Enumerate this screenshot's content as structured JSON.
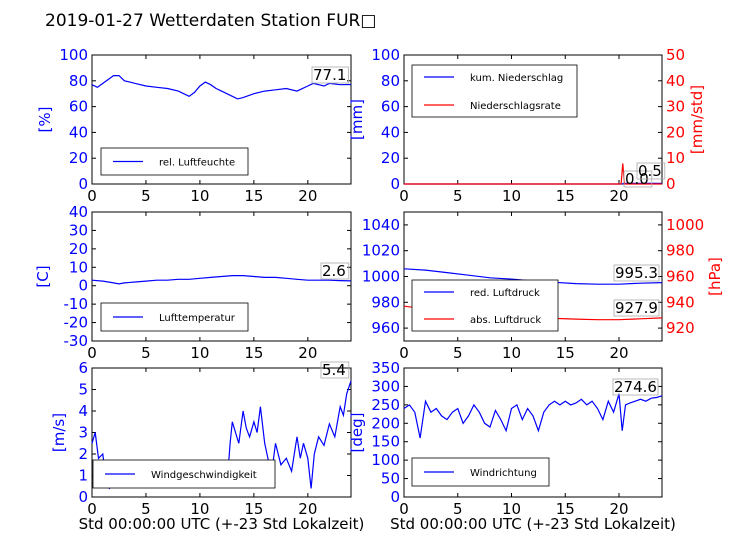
{
  "title": "2019-01-27 Wetterdaten Station FUR□",
  "colors": {
    "primary": "#0000ff",
    "secondary": "#ff0000",
    "axis": "#000000"
  },
  "chart_data": [
    {
      "type": "line",
      "ylabel": "[%]",
      "xlim": [
        0,
        24
      ],
      "ylim": [
        0,
        100
      ],
      "xticks": [
        0,
        5,
        10,
        15,
        20
      ],
      "yticks": [
        0,
        20,
        40,
        60,
        80,
        100
      ],
      "legend": {
        "placement": "lower-left",
        "entries": [
          "rel. Luftfeuchte"
        ]
      },
      "annotations": [
        {
          "text": "77.1",
          "series": 0
        }
      ],
      "series": [
        {
          "name": "rel. Luftfeuchte",
          "axis": "left",
          "color": "#0000ff",
          "x": [
            0,
            0.5,
            1,
            1.5,
            2,
            2.5,
            3,
            3.5,
            4,
            5,
            6,
            7,
            8,
            8.5,
            9,
            9.5,
            10,
            10.5,
            11,
            11.5,
            12,
            12.5,
            13,
            13.5,
            14,
            15,
            16,
            17,
            18,
            19,
            20,
            20.5,
            21,
            21.5,
            22,
            23,
            24
          ],
          "y": [
            77,
            75,
            78,
            81,
            84,
            84,
            80,
            79,
            78,
            76,
            75,
            74,
            72,
            70,
            68,
            71,
            76,
            79,
            77,
            74,
            72,
            70,
            68,
            66,
            67,
            70,
            72,
            73,
            74,
            72,
            76,
            78,
            77,
            76,
            78,
            77,
            77.1
          ]
        }
      ]
    },
    {
      "type": "line",
      "ylabel": "[mm]",
      "ylabel_right": "[mm/std]",
      "xlim": [
        0,
        24
      ],
      "ylim": [
        0,
        100
      ],
      "ylim_right": [
        0,
        50
      ],
      "xticks": [
        0,
        5,
        10,
        15,
        20
      ],
      "yticks": [
        0,
        20,
        40,
        60,
        80,
        100
      ],
      "yticks_right": [
        0,
        10,
        20,
        30,
        40,
        50
      ],
      "legend": {
        "placement": "upper-left",
        "entries": [
          "kum. Niederschlag",
          "Niederschlagsrate"
        ]
      },
      "annotations": [
        {
          "text": "0.0",
          "series": 1
        },
        {
          "text": "0.5",
          "series": 0
        }
      ],
      "series": [
        {
          "name": "kum. Niederschlag",
          "axis": "left",
          "color": "#0000ff",
          "x": [
            0,
            20.3,
            20.4,
            24
          ],
          "y": [
            0,
            0,
            0.5,
            0.5
          ]
        },
        {
          "name": "Niederschlagsrate",
          "axis": "right",
          "color": "#ff0000",
          "x": [
            0,
            20.2,
            20.35,
            20.5,
            24
          ],
          "y": [
            0,
            0,
            8,
            0,
            0
          ]
        }
      ]
    },
    {
      "type": "line",
      "ylabel": "[C]",
      "xlim": [
        0,
        24
      ],
      "ylim": [
        -30,
        40
      ],
      "xticks": [
        0,
        5,
        10,
        15,
        20
      ],
      "yticks": [
        -30,
        -20,
        -10,
        0,
        10,
        20,
        30,
        40
      ],
      "legend": {
        "placement": "lower-left",
        "entries": [
          "Lufttemperatur"
        ]
      },
      "annotations": [
        {
          "text": "2.6",
          "series": 0
        }
      ],
      "series": [
        {
          "name": "Lufttemperatur",
          "axis": "left",
          "color": "#0000ff",
          "x": [
            0,
            1,
            2,
            2.5,
            3,
            4,
            5,
            6,
            7,
            8,
            9,
            10,
            11,
            12,
            13,
            14,
            15,
            16,
            17,
            18,
            19,
            20,
            21,
            22,
            23,
            24
          ],
          "y": [
            3,
            2.5,
            1.5,
            1,
            1.5,
            2,
            2.5,
            3,
            3,
            3.5,
            3.5,
            4,
            4.5,
            5,
            5.5,
            5.5,
            5,
            4.5,
            4.5,
            4,
            3.5,
            3,
            3,
            3,
            2.8,
            2.6
          ]
        }
      ]
    },
    {
      "type": "line",
      "ylabel_right": "[hPa]",
      "xlim": [
        0,
        24
      ],
      "ylim": [
        950,
        1050
      ],
      "ylim_right": [
        910,
        1010
      ],
      "xticks": [
        0,
        5,
        10,
        15,
        20
      ],
      "yticks": [
        960,
        980,
        1000,
        1020,
        1040
      ],
      "yticks_right": [
        920,
        940,
        960,
        980,
        1000
      ],
      "legend": {
        "placement": "lower-left",
        "entries": [
          "red. Luftdruck",
          "abs. Luftdruck"
        ]
      },
      "annotations": [
        {
          "text": "995.3",
          "series": 0
        },
        {
          "text": "927.9",
          "series": 1
        }
      ],
      "series": [
        {
          "name": "red. Luftdruck",
          "axis": "left",
          "color": "#0000ff",
          "x": [
            0,
            2,
            4,
            6,
            8,
            10,
            12,
            14,
            16,
            18,
            20,
            22,
            24
          ],
          "y": [
            1006,
            1005,
            1003,
            1001,
            999,
            998,
            996.5,
            995.5,
            994.5,
            994,
            994,
            994.8,
            995.3
          ]
        },
        {
          "name": "abs. Luftdruck",
          "axis": "right",
          "color": "#ff0000",
          "x": [
            0,
            2,
            4,
            6,
            8,
            10,
            12,
            14,
            16,
            18,
            20,
            22,
            24
          ],
          "y": [
            937,
            935,
            933,
            931.5,
            930,
            929,
            928,
            927.5,
            927,
            926.5,
            926.5,
            927.2,
            927.9
          ]
        }
      ]
    },
    {
      "type": "line",
      "ylabel": "[m/s]",
      "xlabel": "Std 00:00:00 UTC (+-23 Std Lokalzeit)",
      "xlim": [
        0,
        24
      ],
      "ylim": [
        0,
        6
      ],
      "xticks": [
        0,
        5,
        10,
        15,
        20
      ],
      "yticks": [
        0,
        1,
        2,
        3,
        4,
        5,
        6
      ],
      "legend": {
        "placement": "lower-center",
        "entries": [
          "Windgeschwindigkeit"
        ]
      },
      "annotations": [
        {
          "text": "5.4",
          "series": 0
        }
      ],
      "series": [
        {
          "name": "Windgeschwindigkeit",
          "axis": "left",
          "color": "#0000ff",
          "x": [
            0,
            0.3,
            0.6,
            1,
            1.3,
            1.6,
            2,
            2.5,
            3,
            3.5,
            4,
            4.5,
            5,
            5.5,
            6,
            6.5,
            7,
            7.5,
            8,
            8.5,
            9,
            9.5,
            10,
            10.5,
            11,
            11.5,
            12,
            12.5,
            12.8,
            13,
            13.3,
            13.6,
            14,
            14.3,
            14.6,
            15,
            15.3,
            15.6,
            16,
            16.3,
            16.6,
            17,
            17.5,
            18,
            18.5,
            19,
            19.3,
            19.6,
            20,
            20.3,
            20.6,
            21,
            21.5,
            22,
            22.5,
            23,
            23.3,
            23.6,
            24
          ],
          "y": [
            2.5,
            3.0,
            1.8,
            2.0,
            0.8,
            0.4,
            0.6,
            0.5,
            1.0,
            0.8,
            1.2,
            0.9,
            1.3,
            1.1,
            1.0,
            1.3,
            0.9,
            1.4,
            1.0,
            0.7,
            1.1,
            0.9,
            0.5,
            1.2,
            0.9,
            0.6,
            0.8,
            0.5,
            2.5,
            3.5,
            3.0,
            2.5,
            4.0,
            3.2,
            2.8,
            3.5,
            3.0,
            4.2,
            2.5,
            1.8,
            0.9,
            2.5,
            1.5,
            1.8,
            1.2,
            2.8,
            1.8,
            2.5,
            1.8,
            0.4,
            2.0,
            2.8,
            2.4,
            3.4,
            2.8,
            4.2,
            3.8,
            4.8,
            5.4
          ]
        }
      ]
    },
    {
      "type": "line",
      "ylabel": "[deg]",
      "xlabel": "Std 00:00:00 UTC (+-23 Std Lokalzeit)",
      "xlim": [
        0,
        24
      ],
      "ylim": [
        0,
        350
      ],
      "xticks": [
        0,
        5,
        10,
        15,
        20
      ],
      "yticks": [
        0,
        50,
        100,
        150,
        200,
        250,
        300,
        350
      ],
      "legend": {
        "placement": "lower-left",
        "entries": [
          "Windrichtung"
        ]
      },
      "annotations": [
        {
          "text": "274.6",
          "series": 0
        }
      ],
      "series": [
        {
          "name": "Windrichtung",
          "axis": "left",
          "color": "#0000ff",
          "x": [
            0,
            0.5,
            1,
            1.5,
            2,
            2.5,
            3,
            3.5,
            4,
            4.5,
            5,
            5.5,
            6,
            6.5,
            7,
            7.5,
            8,
            8.5,
            9,
            9.5,
            10,
            10.5,
            11,
            11.5,
            12,
            12.5,
            13,
            13.5,
            14,
            14.5,
            15,
            15.5,
            16,
            16.5,
            17,
            17.5,
            18,
            18.5,
            19,
            19.5,
            20,
            20.3,
            20.6,
            21,
            21.5,
            22,
            22.5,
            23,
            23.5,
            24
          ],
          "y": [
            240,
            250,
            230,
            160,
            260,
            230,
            240,
            220,
            210,
            230,
            240,
            200,
            220,
            250,
            230,
            200,
            190,
            235,
            210,
            180,
            240,
            250,
            210,
            240,
            220,
            180,
            230,
            250,
            260,
            250,
            260,
            250,
            255,
            265,
            250,
            260,
            240,
            210,
            260,
            230,
            280,
            180,
            250,
            255,
            260,
            265,
            260,
            268,
            270,
            274.6
          ]
        }
      ]
    }
  ]
}
